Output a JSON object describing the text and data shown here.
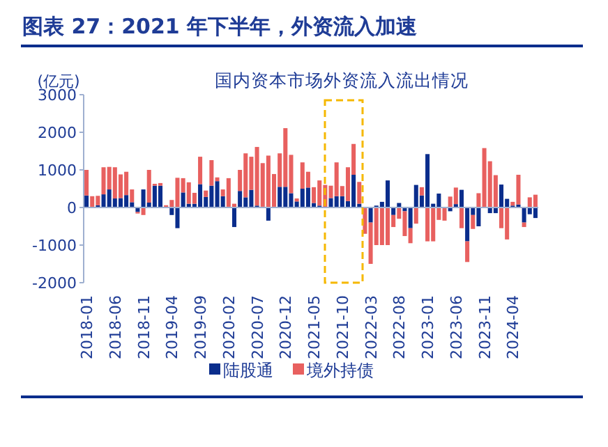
{
  "chart_data": {
    "type": "bar",
    "title": "图表 27：2021 年下半年，外资流入加速",
    "subtitle": "国内资本市场外资流入流出情况",
    "ylabel": "(亿元)",
    "categories": [
      "2018-01",
      null,
      null,
      null,
      null,
      "2018-06",
      null,
      null,
      null,
      null,
      "2018-11",
      null,
      null,
      null,
      null,
      "2019-04",
      null,
      null,
      null,
      null,
      "2019-09",
      null,
      null,
      null,
      null,
      "2020-02",
      null,
      null,
      null,
      null,
      "2020-07",
      null,
      null,
      null,
      null,
      "2020-12",
      null,
      null,
      null,
      null,
      "2021-05",
      null,
      null,
      null,
      null,
      "2021-10",
      null,
      null,
      null,
      null,
      "2022-03",
      null,
      null,
      null,
      null,
      "2022-08",
      null,
      null,
      null,
      null,
      "2023-01",
      null,
      null,
      null,
      null,
      "2023-06",
      null,
      null,
      null,
      null,
      "2023-11",
      null,
      null,
      null,
      null,
      "2024-04",
      null,
      null,
      null,
      null
    ],
    "series": [
      {
        "name": "陆股通",
        "color": "#0a2d8c",
        "values": [
          320,
          0,
          60,
          350,
          480,
          240,
          250,
          330,
          140,
          -120,
          480,
          130,
          580,
          580,
          null,
          -200,
          -550,
          400,
          100,
          100,
          620,
          280,
          580,
          700,
          300,
          20,
          -520,
          440,
          270,
          470,
          50,
          20,
          -350,
          20,
          550,
          550,
          380,
          160,
          500,
          530,
          120,
          50,
          null,
          250,
          300,
          300,
          170,
          870,
          100,
          null,
          -400,
          50,
          150,
          720,
          -200,
          120,
          -100,
          -550,
          600,
          320,
          1420,
          100,
          370,
          0,
          -100,
          90,
          470,
          -900,
          -200,
          -500,
          0,
          -150,
          -150,
          610,
          230,
          50,
          80,
          -400,
          -180,
          -280
        ]
      },
      {
        "name": "境外持债",
        "color": "#e8605f",
        "values": [
          680,
          300,
          250,
          720,
          600,
          830,
          630,
          620,
          340,
          -40,
          -200,
          870,
          50,
          70,
          60,
          200,
          790,
          380,
          570,
          290,
          730,
          170,
          680,
          100,
          180,
          760,
          100,
          560,
          1170,
          880,
          1560,
          1160,
          1380,
          870,
          890,
          1560,
          1020,
          80,
          700,
          420,
          420,
          670,
          600,
          330,
          900,
          270,
          900,
          820,
          580,
          -700,
          -1100,
          -1000,
          -1000,
          -1000,
          -320,
          -300,
          -660,
          -400,
          -430,
          220,
          -900,
          -900,
          -330,
          -350,
          290,
          440,
          -550,
          -550,
          -370,
          380,
          1580,
          1230,
          860,
          -550,
          -850,
          100,
          790,
          -120,
          270,
          340
        ]
      }
    ],
    "ref_lines": [
      {
        "axis": "y",
        "value": 0,
        "color": "#9fb0d0"
      }
    ],
    "stacked": true,
    "ylim": [
      -2000,
      3000
    ],
    "yticks": [
      -2000,
      -1000,
      0,
      1000,
      2000,
      3000
    ],
    "legend": "bottom"
  }
}
